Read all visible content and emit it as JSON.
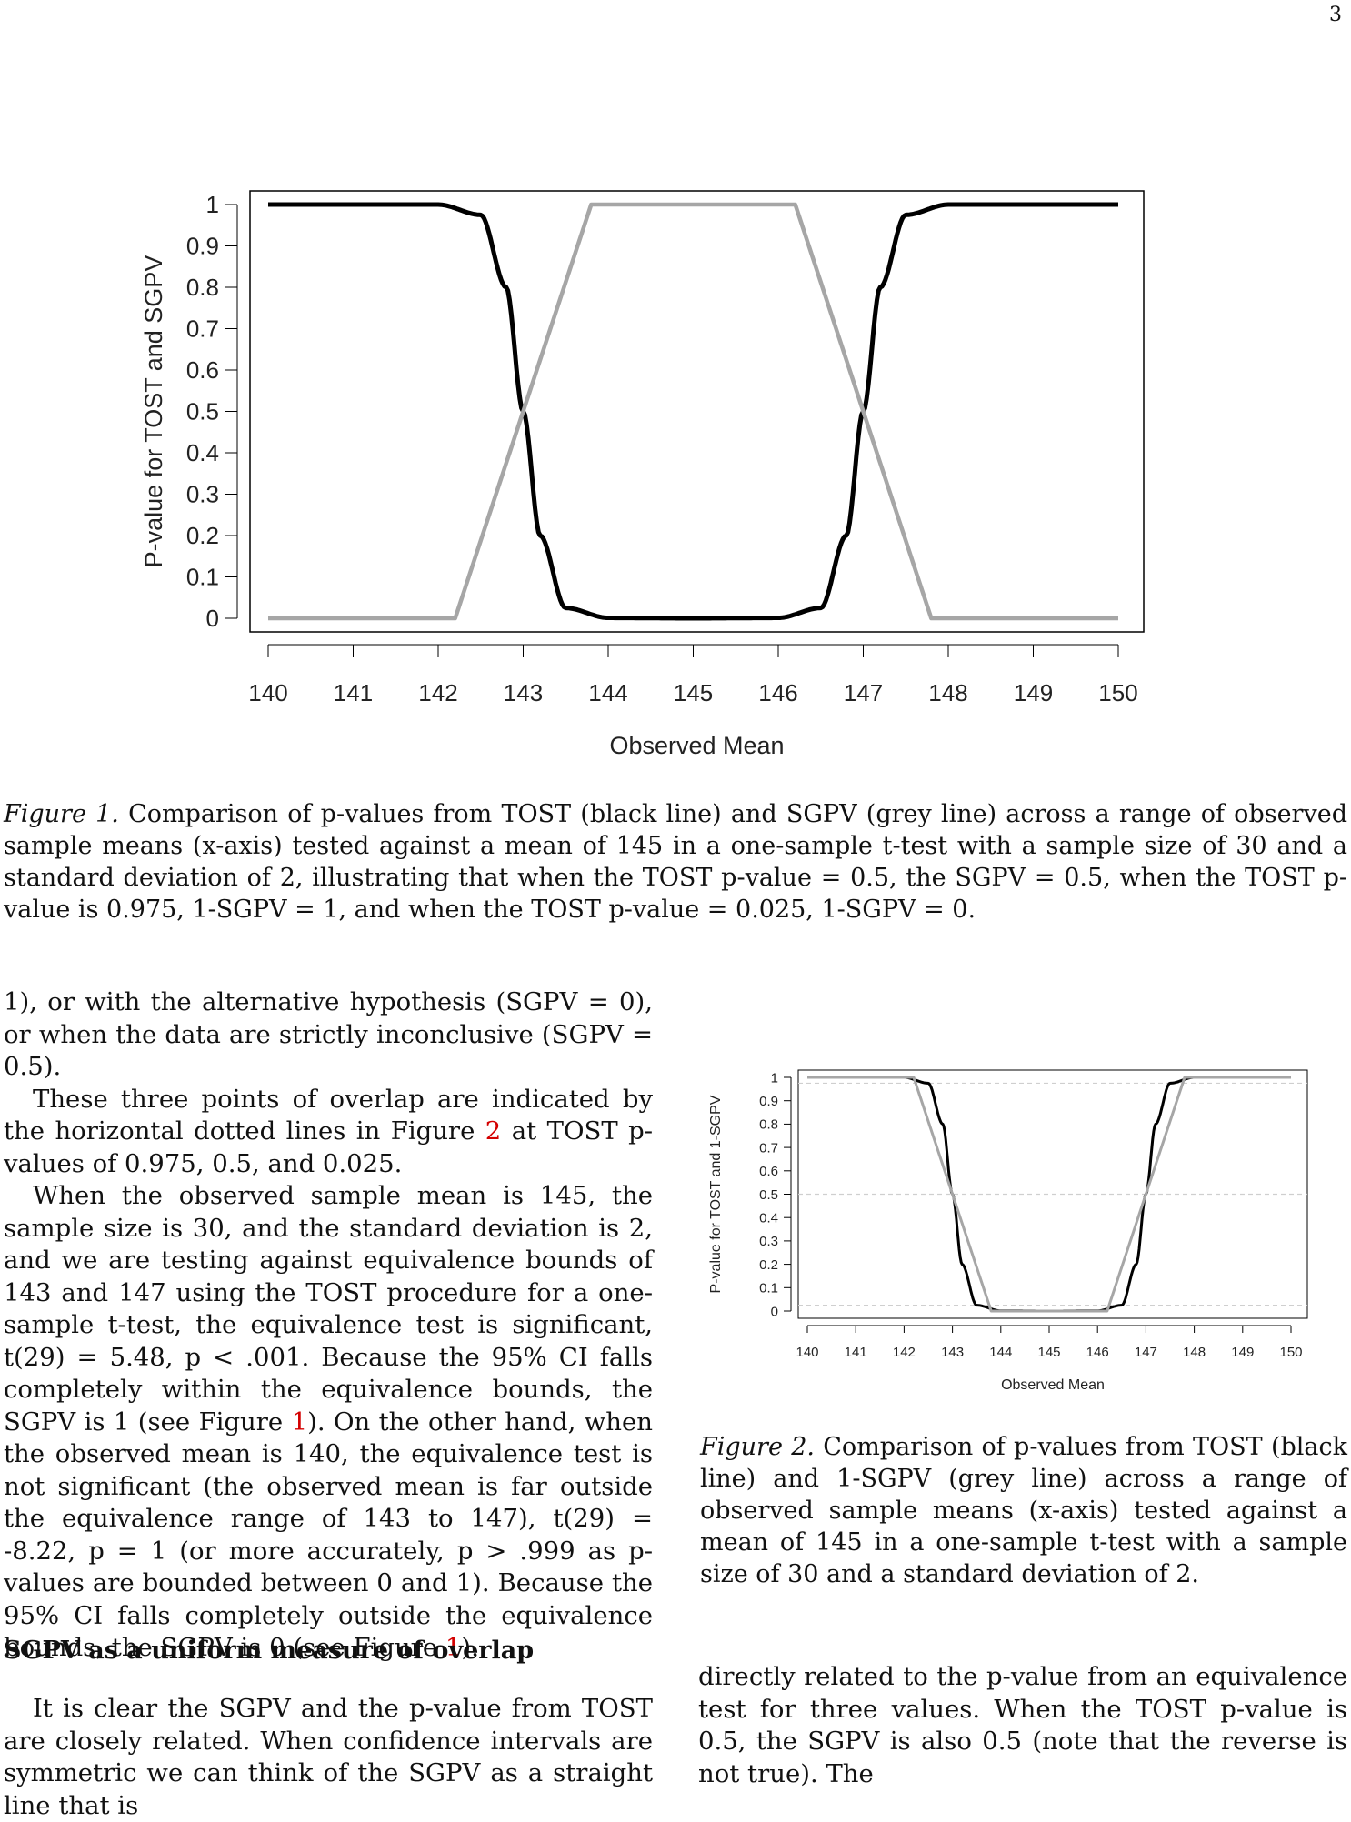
{
  "page_number": "3",
  "figure1": {
    "caption_label": "Figure 1.",
    "caption_text": " Comparison of p-values from TOST (black line) and SGPV (grey line) across a range of observed sample means (x-axis) tested against a mean of 145 in a one-sample t-test with a sample size of 30 and a standard deviation of 2, illustrating that when the TOST p-value = 0.5, the SGPV = 0.5, when the TOST p-value is 0.975, 1-SGPV = 1, and when the TOST p-value = 0.025, 1-SGPV = 0."
  },
  "figure2": {
    "caption_label": "Figure 2.",
    "caption_text": " Comparison of p-values from TOST (black line) and 1-SGPV (grey line) across a range of observed sample means (x-axis) tested against a mean of 145 in a one-sample t-test with a sample size of 30 and a standard deviation of 2."
  },
  "body": {
    "p1": "1), or with the alternative hypothesis (SGPV = 0), or when the data are strictly inconclusive (SGPV = 0.5).",
    "p2_before": "These three points of overlap are indicated by the horizontal dotted lines in Figure ",
    "p2_ref": "2",
    "p2_after": " at TOST p-values of 0.975, 0.5, and 0.025.",
    "p3_a": "When the observed sample mean is 145, the sample size is 30, and the standard deviation is 2, and we are testing against equivalence bounds of 143 and 147 using the TOST procedure for a one-sample t-test, the equivalence test is significant, t(29) = 5.48, p < .001. Because the 95% CI falls completely within the equivalence bounds, the SGPV is 1 (see Figure ",
    "p3_ref1": "1",
    "p3_b": "). On the other hand, when the observed mean is 140, the equivalence test is not significant (the observed mean is far outside the equivalence range of 143 to 147), t(29) = -8.22, p = 1 (or more accurately, p > .999 as p-values are bounded between 0 and 1). Because the 95% CI falls completely outside the equivalence bounds, the SGPV is 0 (see Figure ",
    "p3_ref2": "1",
    "p3_c": ").",
    "heading": "SGPV as a uniform measure of overlap",
    "p4": "It is clear the SGPV and the p-value from TOST are closely related. When confidence intervals are symmetric we can think of the SGPV as a straight line that is",
    "p5": "directly related to the p-value from an equivalence test for three values. When the TOST p-value is 0.5, the SGPV is also 0.5 (note that the reverse is not true). The"
  },
  "chart_data": [
    {
      "type": "line",
      "xlabel": "Observed Mean",
      "ylabel": "P-value for TOST and SGPV",
      "xlim": [
        140,
        150
      ],
      "ylim": [
        0,
        1
      ],
      "x_ticks": [
        "140",
        "141",
        "142",
        "143",
        "144",
        "145",
        "146",
        "147",
        "148",
        "149",
        "150"
      ],
      "y_ticks": [
        "0",
        "0.1",
        "0.2",
        "0.3",
        "0.4",
        "0.5",
        "0.6",
        "0.7",
        "0.8",
        "0.9",
        "1"
      ],
      "grid": false,
      "series": [
        {
          "color": "#000000",
          "x": [
            140,
            141,
            142,
            142.5,
            142.8,
            143,
            143.2,
            143.5,
            144,
            145,
            146,
            146.5,
            146.8,
            147,
            147.2,
            147.5,
            148,
            149,
            150
          ],
          "values": [
            1,
            1,
            1,
            0.975,
            0.8,
            0.5,
            0.2,
            0.025,
            0.001,
            0,
            0.001,
            0.025,
            0.2,
            0.5,
            0.8,
            0.975,
            1,
            1,
            1
          ]
        },
        {
          "color": "#a6a6a6",
          "x": [
            140,
            142.2,
            143,
            143.8,
            146.2,
            147,
            147.8,
            150
          ],
          "values": [
            0,
            0,
            0.5,
            1,
            1,
            0.5,
            0,
            0
          ]
        }
      ]
    },
    {
      "type": "line",
      "xlabel": "Observed Mean",
      "ylabel": "P-value for TOST and 1-SGPV",
      "xlim": [
        140,
        150
      ],
      "ylim": [
        0,
        1
      ],
      "x_ticks": [
        "140",
        "141",
        "142",
        "143",
        "144",
        "145",
        "146",
        "147",
        "148",
        "149",
        "150"
      ],
      "y_ticks": [
        "0",
        "0.1",
        "0.2",
        "0.3",
        "0.4",
        "0.5",
        "0.6",
        "0.7",
        "0.8",
        "0.9",
        "1"
      ],
      "reference_lines": [
        0.975,
        0.5,
        0.025
      ],
      "grid": false,
      "series": [
        {
          "color": "#000000",
          "x": [
            140,
            141,
            142,
            142.5,
            142.8,
            143,
            143.2,
            143.5,
            144,
            145,
            146,
            146.5,
            146.8,
            147,
            147.2,
            147.5,
            148,
            149,
            150
          ],
          "values": [
            1,
            1,
            1,
            0.975,
            0.8,
            0.5,
            0.2,
            0.025,
            0.001,
            0,
            0.001,
            0.025,
            0.2,
            0.5,
            0.8,
            0.975,
            1,
            1,
            1
          ]
        },
        {
          "color": "#a6a6a6",
          "x": [
            140,
            142.2,
            143,
            143.8,
            146.2,
            147,
            147.8,
            150
          ],
          "values": [
            1,
            1,
            0.5,
            0,
            0,
            0.5,
            1,
            1
          ]
        }
      ]
    }
  ]
}
